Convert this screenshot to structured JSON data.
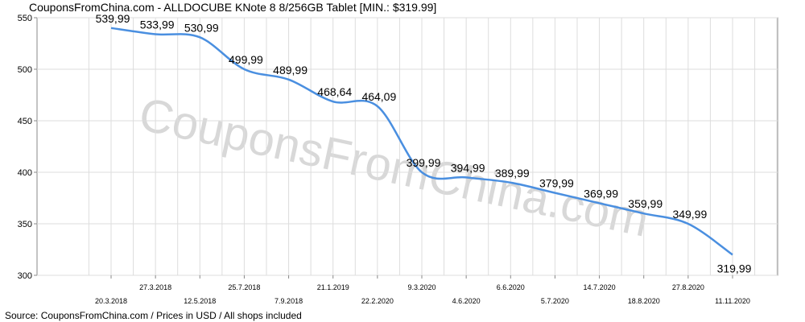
{
  "title": "CouponsFromChina.com - ALLDOCUBE KNote 8 8/256GB Tablet [MIN.: $319.99]",
  "source": "Source: CouponsFromChina.com / Prices in USD / All shops included",
  "watermark": "CouponsFromChina.com",
  "colors": {
    "line": "#4a8fe0",
    "grid": "#dddddd",
    "axis": "#888888",
    "watermark": "#d8d8d8"
  },
  "chart_data": {
    "type": "line",
    "title": "CouponsFromChina.com - ALLDOCUBE KNote 8 8/256GB Tablet [MIN.: $319.99]",
    "xlabel": "",
    "ylabel": "",
    "ylim": [
      300,
      550
    ],
    "yticks": [
      300,
      350,
      400,
      450,
      500,
      550
    ],
    "grid": true,
    "x_tick_labels": [
      "20.3.2018",
      "27.3.2018",
      "12.5.2018",
      "25.7.2018",
      "7.9.2018",
      "21.1.2019",
      "22.2.2020",
      "9.3.2020",
      "4.6.2020",
      "6.6.2020",
      "5.7.2020",
      "14.7.2020",
      "18.8.2020",
      "27.8.2020",
      "11.11.2020"
    ],
    "series": [
      {
        "values": [
          539.99,
          533.99,
          530.99,
          499.99,
          489.99,
          468.64,
          464.09,
          399.99,
          394.99,
          389.99,
          379.99,
          369.99,
          359.99,
          349.99,
          319.99
        ],
        "labels": [
          "539,99",
          "533,99",
          "530,99",
          "499,99",
          "489,99",
          "468,64",
          "464,09",
          "399,99",
          "394,99",
          "389,99",
          "379,99",
          "369,99",
          "359,99",
          "349,99",
          "319,99"
        ]
      }
    ]
  }
}
